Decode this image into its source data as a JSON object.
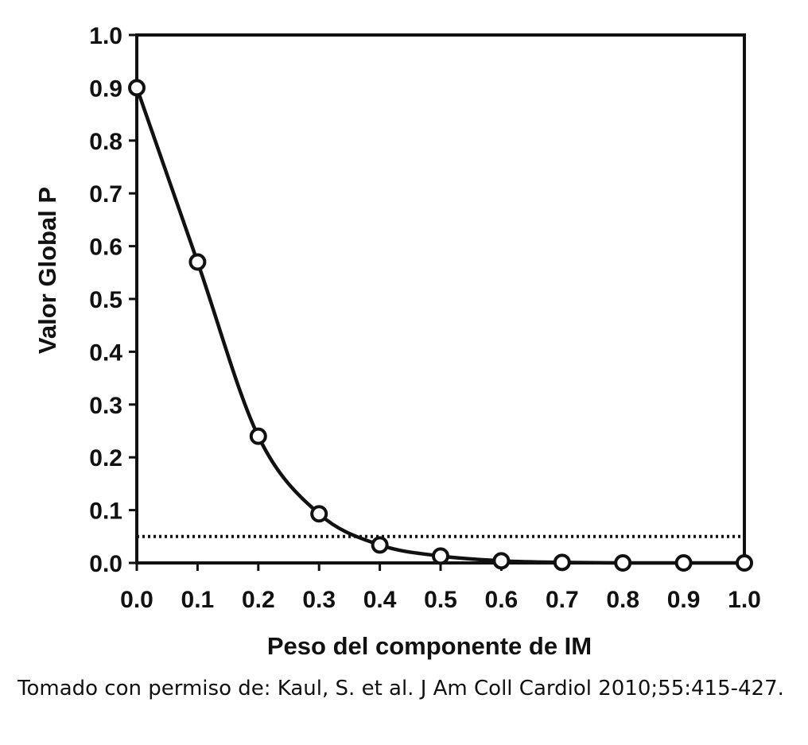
{
  "chart_data": {
    "type": "line",
    "xlabel": "Peso del componente de IM",
    "ylabel": "Valor Global P",
    "xlim": [
      0.0,
      1.0
    ],
    "ylim": [
      0.0,
      1.0
    ],
    "x_ticks": [
      "0.0",
      "0.1",
      "0.2",
      "0.3",
      "0.4",
      "0.5",
      "0.6",
      "0.7",
      "0.8",
      "0.9",
      "1.0"
    ],
    "y_ticks": [
      "0.0",
      "0.1",
      "0.2",
      "0.3",
      "0.4",
      "0.5",
      "0.6",
      "0.7",
      "0.8",
      "0.9",
      "1.0"
    ],
    "series": [
      {
        "x": [
          0.0,
          0.1,
          0.2,
          0.3,
          0.4,
          0.5,
          0.6,
          0.7,
          0.8,
          0.9,
          1.0
        ],
        "y": [
          0.9,
          0.57,
          0.24,
          0.093,
          0.034,
          0.013,
          0.004,
          0.001,
          0.0,
          0.0,
          0.0
        ]
      }
    ],
    "reference_line": {
      "y": 0.05,
      "style": "dotted"
    },
    "grid": false,
    "legend": false
  },
  "caption": "Tomado con permiso de: Kaul, S. et al. J Am Coll Cardiol 2010;55:415-427."
}
